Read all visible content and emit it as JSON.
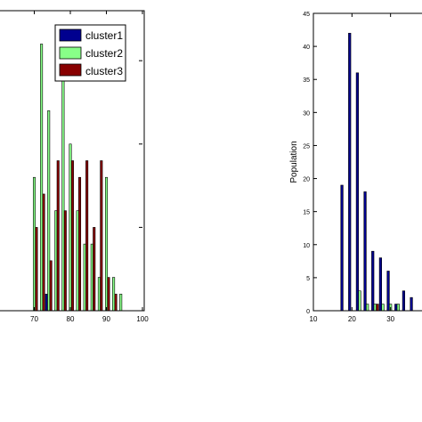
{
  "chart_data": [
    {
      "type": "bar",
      "title": "",
      "xlabel": "",
      "ylabel": "",
      "xlim": [
        60,
        100
      ],
      "ylim": [
        0,
        18
      ],
      "xticks": [
        70,
        80,
        90,
        100
      ],
      "xtick_labels": [
        "70",
        "80",
        "90",
        "100"
      ],
      "grid": false,
      "legend": "top-right",
      "bin_step": 2,
      "bar_width": 0.6,
      "bins": [
        62,
        64,
        66,
        68,
        70,
        72,
        74,
        76,
        78,
        80,
        82,
        84,
        86,
        88,
        90,
        92,
        94
      ],
      "series": [
        {
          "name": "cluster1",
          "color": "#00008f",
          "values": [
            0,
            0,
            0,
            0,
            0,
            0,
            1,
            0,
            0,
            0,
            0,
            0,
            0,
            0,
            0,
            0,
            0
          ]
        },
        {
          "name": "cluster2",
          "color": "#88ff88",
          "values": [
            0,
            0,
            0,
            0,
            8,
            16,
            12,
            6,
            14,
            10,
            6,
            4,
            4,
            2,
            8,
            2,
            1
          ]
        },
        {
          "name": "cluster3",
          "color": "#880000",
          "values": [
            0,
            0,
            0,
            0,
            5,
            7,
            3,
            9,
            6,
            9,
            8,
            9,
            5,
            9,
            2,
            1,
            0
          ]
        }
      ]
    },
    {
      "type": "bar",
      "title": "",
      "xlabel": "",
      "ylabel": "Population",
      "xlim": [
        10,
        40
      ],
      "ylim": [
        0,
        45
      ],
      "xticks": [
        10,
        20,
        30
      ],
      "xtick_labels": [
        "10",
        "20",
        "30"
      ],
      "yticks": [
        0,
        5,
        10,
        15,
        20,
        25,
        30,
        35,
        40,
        45
      ],
      "ytick_labels": [
        "0",
        "5",
        "10",
        "15",
        "20",
        "25",
        "30",
        "35",
        "40",
        "45"
      ],
      "grid": false,
      "bin_step": 2,
      "bar_width": 0.6,
      "bins": [
        18,
        20,
        22,
        24,
        26,
        28,
        30,
        32,
        34,
        36
      ],
      "series": [
        {
          "name": "cluster1",
          "color": "#00008f",
          "values": [
            19,
            42,
            36,
            18,
            9,
            8,
            6,
            1,
            3,
            2
          ]
        },
        {
          "name": "cluster2",
          "color": "#88ff88",
          "values": [
            0,
            0,
            3,
            1,
            1,
            1,
            1,
            1,
            0,
            0
          ]
        },
        {
          "name": "cluster3",
          "color": "#880000",
          "values": [
            0,
            0,
            0,
            0,
            1,
            0,
            0,
            0,
            0,
            0
          ]
        }
      ]
    }
  ]
}
